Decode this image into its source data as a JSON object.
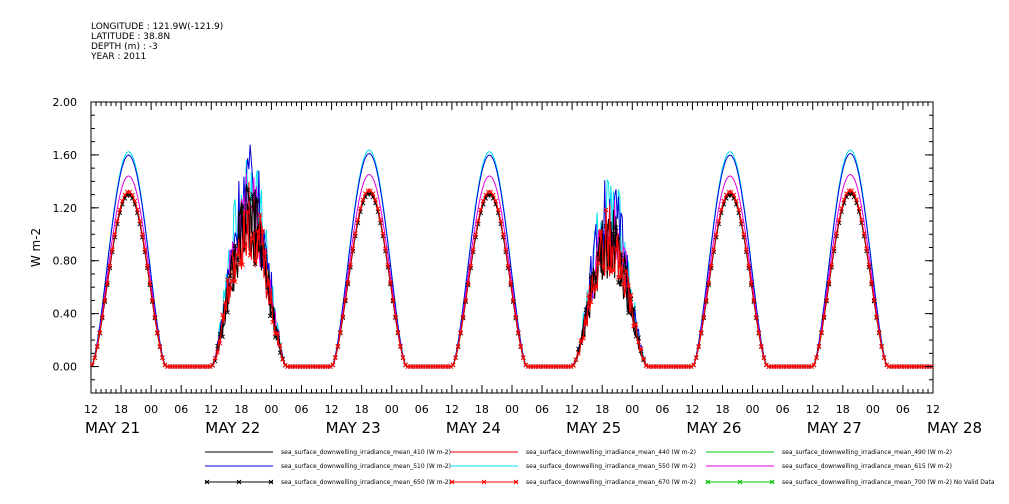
{
  "header": {
    "lines": [
      "LONGITUDE : 121.9W(-121.9)",
      "LATITUDE : 38.8N",
      "DEPTH (m) : -3",
      "YEAR : 2011"
    ]
  },
  "chart_data": {
    "type": "line",
    "title": "",
    "xlabel": "",
    "ylabel": "W m-2",
    "ylim": [
      -0.2,
      2.0
    ],
    "yticks": [
      0.0,
      0.4,
      0.8,
      1.2,
      1.6,
      2.0
    ],
    "ytick_labels": [
      "0.00",
      "0.40",
      "0.80",
      "1.20",
      "1.60",
      "2.00"
    ],
    "xlim_hours": [
      12,
      180
    ],
    "xtick_labels": [
      "12",
      "18",
      "00",
      "06",
      "12",
      "18",
      "00",
      "06",
      "12",
      "18",
      "00",
      "06",
      "12",
      "18",
      "00",
      "06",
      "12",
      "18",
      "00",
      "06",
      "12",
      "18",
      "00",
      "06",
      "12",
      "18",
      "00",
      "06",
      "12"
    ],
    "day_labels": [
      "MAY 21",
      "MAY 22",
      "MAY 23",
      "MAY 24",
      "MAY 25",
      "MAY 26",
      "MAY 27",
      "MAY 28"
    ],
    "grid": false,
    "legend_position": "bottom",
    "series": [
      {
        "name": "sea_surface_downwelling_irradiance_mean_410 (W m-2)",
        "color": "#000000",
        "marker": "none",
        "peak_ratio": 1.0
      },
      {
        "name": "sea_surface_downwelling_irradiance_mean_440 (W m-2)",
        "color": "#e8000b",
        "marker": "none",
        "peak_ratio": 1.0
      },
      {
        "name": "sea_surface_downwelling_irradiance_mean_490 (W m-2)",
        "color": "#00c800",
        "marker": "none",
        "peak_ratio": 0.0
      },
      {
        "name": "sea_surface_downwelling_irradiance_mean_510 (W m-2)",
        "color": "#0000dd",
        "marker": "none",
        "peak_ratio": 1.22
      },
      {
        "name": "sea_surface_downwelling_irradiance_mean_550 (W m-2)",
        "color": "#00e0f0",
        "marker": "none",
        "peak_ratio": 1.24
      },
      {
        "name": "sea_surface_downwelling_irradiance_mean_615 (W m-2)",
        "color": "#e000e0",
        "marker": "none",
        "peak_ratio": 1.1
      },
      {
        "name": "sea_surface_downwelling_irradiance_mean_650 (W m-2)",
        "color": "#000000",
        "marker": "x",
        "peak_ratio": 0.99
      },
      {
        "name": "sea_surface_downwelling_irradiance_mean_670 (W m-2)",
        "color": "#ff0000",
        "marker": "x",
        "peak_ratio": 1.01
      },
      {
        "name": "sea_surface_downwelling_irradiance_mean_700 (W m-2) No Valid Data",
        "color": "#00c800",
        "marker": "x",
        "peak_ratio": 0.0
      }
    ],
    "daily_peaks": [
      {
        "day": "MAY 21",
        "noon_hour": 19.5,
        "peak": 1.31
      },
      {
        "day": "MAY 22",
        "noon_hour": 43.5,
        "peak": 1.05
      },
      {
        "day": "MAY 23",
        "noon_hour": 67.5,
        "peak": 1.32
      },
      {
        "day": "MAY 24",
        "noon_hour": 91.5,
        "peak": 1.31
      },
      {
        "day": "MAY 25",
        "noon_hour": 115.5,
        "peak": 0.9
      },
      {
        "day": "MAY 26",
        "noon_hour": 139.5,
        "peak": 1.31
      },
      {
        "day": "MAY 27",
        "noon_hour": 163.5,
        "peak": 1.32
      }
    ],
    "daylight_half_width_hours": 7.5
  }
}
